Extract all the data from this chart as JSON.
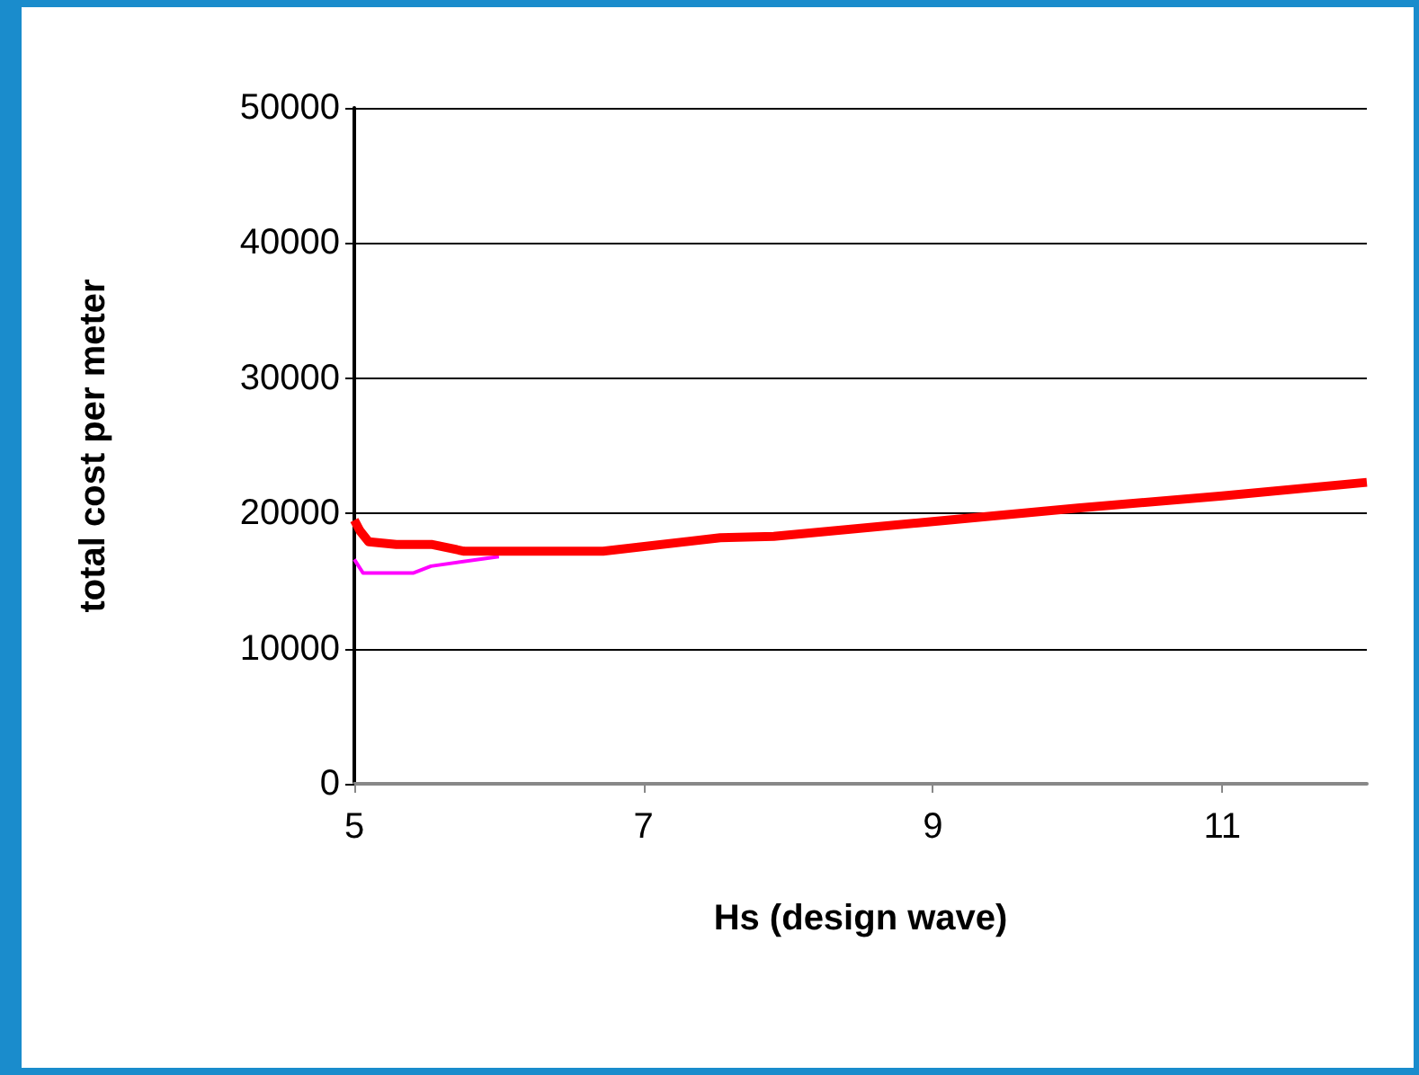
{
  "chart_data": {
    "type": "line",
    "xlabel": "Hs (design wave)",
    "ylabel": "total cost per meter",
    "xlim": [
      5,
      12
    ],
    "xticks": [
      5,
      7,
      9,
      11
    ],
    "ylim": [
      0,
      50000
    ],
    "yticks": [
      0,
      10000,
      20000,
      30000,
      40000,
      50000
    ],
    "grid": "y",
    "marker": "none",
    "series": [
      {
        "color": "#ff0000",
        "x": [
          5,
          5.04,
          5.1,
          5.29,
          5.54,
          5.76,
          6.72,
          7.53,
          7.9,
          9,
          10,
          11,
          12
        ],
        "values": [
          19500,
          18700,
          17900,
          17700,
          17700,
          17200,
          17200,
          18200,
          18300,
          19400,
          20400,
          21300,
          22300
        ]
      },
      {
        "color": "#ff00ff",
        "x": [
          5,
          5.06,
          5.41,
          5.53,
          6.0
        ],
        "values": [
          16600,
          15600,
          15600,
          16100,
          16800
        ]
      }
    ]
  }
}
